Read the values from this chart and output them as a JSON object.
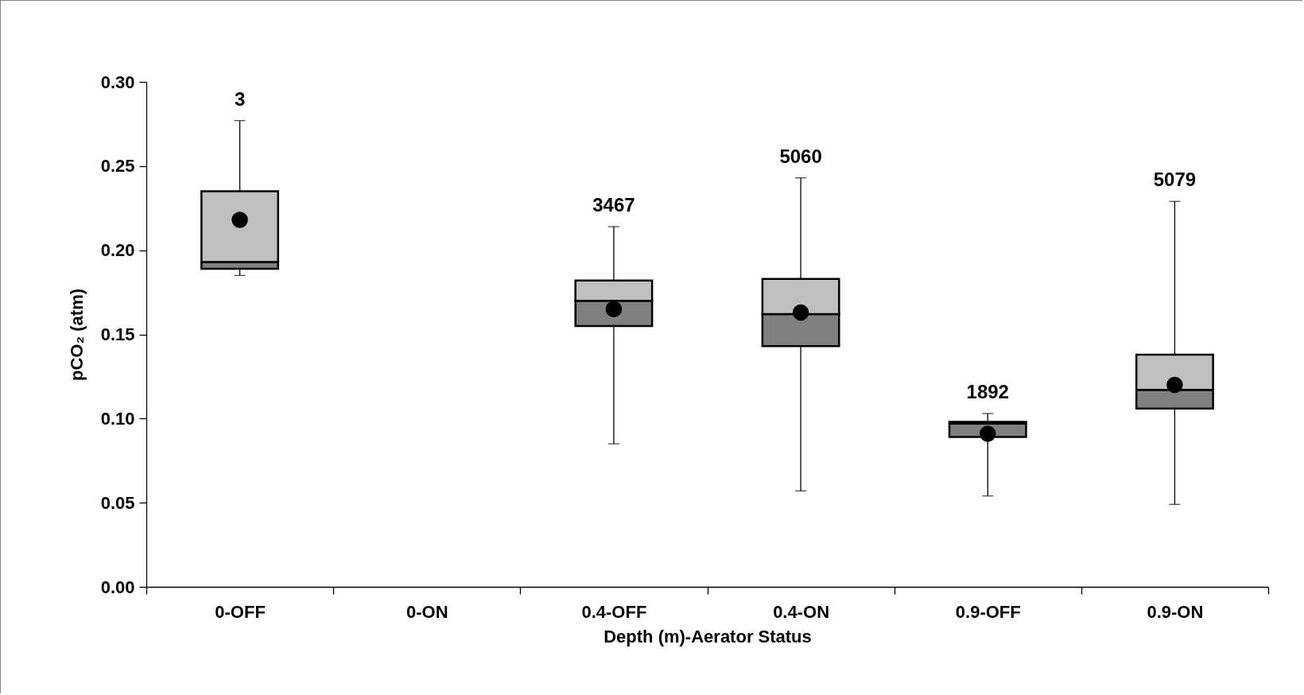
{
  "chart_data": {
    "type": "box",
    "xlabel": "Depth (m)-Aerator Status",
    "ylabel": "pCO₂ (atm)",
    "categories": [
      "0-OFF",
      "0-ON",
      "0.4-OFF",
      "0.4-ON",
      "0.9-OFF",
      "0.9-ON"
    ],
    "boxes": [
      {
        "low": 0.185,
        "q1": 0.189,
        "median": 0.193,
        "q3": 0.235,
        "high": 0.277,
        "mean": 0.218
      },
      null,
      {
        "low": 0.085,
        "q1": 0.155,
        "median": 0.17,
        "q3": 0.182,
        "high": 0.214,
        "mean": 0.165
      },
      {
        "low": 0.057,
        "q1": 0.143,
        "median": 0.162,
        "q3": 0.183,
        "high": 0.243,
        "mean": 0.163
      },
      {
        "low": 0.054,
        "q1": 0.089,
        "median": 0.097,
        "q3": 0.098,
        "high": 0.103,
        "mean": 0.091
      },
      {
        "low": 0.049,
        "q1": 0.106,
        "median": 0.117,
        "q3": 0.138,
        "high": 0.229,
        "mean": 0.12
      }
    ],
    "marker": "circle",
    "ylim": [
      0,
      0.3
    ],
    "yticks": [
      {
        "value": 0,
        "label": "0.00"
      },
      {
        "value": 0.05,
        "label": "0.05"
      },
      {
        "value": 0.1,
        "label": "0.10"
      },
      {
        "value": 0.15,
        "label": "0.15"
      },
      {
        "value": 0.2,
        "label": "0.20"
      },
      {
        "value": 0.25,
        "label": "0.25"
      },
      {
        "value": 0.3,
        "label": "0.30"
      }
    ],
    "annotations": [
      "3",
      "3467",
      "5060",
      "1892",
      "5079"
    ],
    "grid": false
  }
}
